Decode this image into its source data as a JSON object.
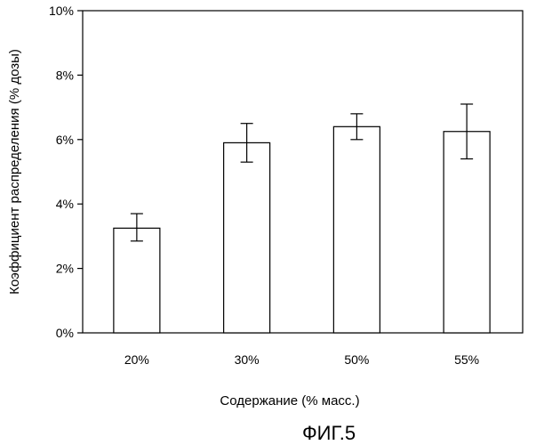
{
  "chart_data": {
    "type": "bar",
    "categories": [
      "20%",
      "30%",
      "50%",
      "55%"
    ],
    "values": [
      3.25,
      5.9,
      6.4,
      6.25
    ],
    "error_low": [
      2.85,
      5.3,
      6.0,
      5.4
    ],
    "error_high": [
      3.7,
      6.5,
      6.8,
      7.1
    ],
    "ylim": [
      0,
      10
    ],
    "yticks": [
      0,
      2,
      4,
      6,
      8,
      10
    ],
    "ytick_labels": [
      "0%",
      "2%",
      "4%",
      "6%",
      "8%",
      "10%"
    ],
    "xlabel": "Содержание (% масс.)",
    "ylabel": "Коэффициент распределения (% дозы)",
    "grid": false,
    "bar_fill": "#ffffff",
    "bar_stroke": "#000000"
  },
  "figure_caption": "ФИГ.5"
}
